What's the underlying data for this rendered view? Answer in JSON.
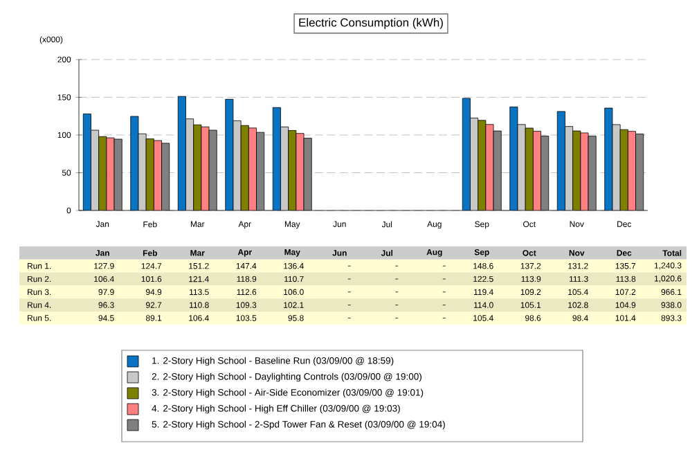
{
  "chart_data": {
    "type": "bar",
    "title": "Electric Consumption (kWh)",
    "ylabel": "(x000)",
    "categories": [
      "Jan",
      "Feb",
      "Mar",
      "Apr",
      "May",
      "Jun",
      "Jul",
      "Aug",
      "Sep",
      "Oct",
      "Nov",
      "Dec"
    ],
    "series": [
      {
        "name": "1.  2-Story High School - Baseline Run  (03/09/00 @ 18:59)",
        "color": "#0a74c4",
        "values": [
          127.9,
          124.7,
          151.2,
          147.4,
          136.4,
          null,
          null,
          null,
          148.6,
          137.2,
          131.2,
          135.7
        ],
        "value_labels": [
          "127.9",
          "124.7",
          "151.2",
          "147.4",
          "136.4",
          null,
          null,
          null,
          "148.6",
          "137.2",
          "131.2",
          "135.7"
        ]
      },
      {
        "name": "2.  2-Story High School - Daylighting Controls  (03/09/00 @ 19:00)",
        "color": "#c8c8c8",
        "values": [
          106.4,
          101.6,
          121.4,
          118.9,
          110.7,
          null,
          null,
          null,
          122.5,
          113.9,
          111.3,
          113.8
        ],
        "value_labels": [
          "106.4",
          "101.6",
          "121.4",
          "118.9",
          "110.7",
          null,
          null,
          null,
          "122.5",
          "113.9",
          "111.3",
          "113.8"
        ]
      },
      {
        "name": "3.  2-Story High School - Air-Side Economizer  (03/09/00 @ 19:01)",
        "color": "#808000",
        "values": [
          97.9,
          94.9,
          113.5,
          112.6,
          106.0,
          null,
          null,
          null,
          119.4,
          109.2,
          105.4,
          107.2
        ],
        "value_labels": [
          "97.9",
          "94.9",
          "113.5",
          "112.6",
          "106.0",
          null,
          null,
          null,
          "119.4",
          "109.2",
          "105.4",
          "107.2"
        ]
      },
      {
        "name": "4.  2-Story High School - High Eff Chiller  (03/09/00 @ 19:03)",
        "color": "#ff8080",
        "values": [
          96.3,
          92.7,
          110.8,
          109.3,
          102.1,
          null,
          null,
          null,
          114.0,
          105.1,
          102.8,
          104.9
        ],
        "value_labels": [
          "96.3",
          "92.7",
          "110.8",
          "109.3",
          "102.1",
          null,
          null,
          null,
          "114.0",
          "105.1",
          "102.8",
          "104.9"
        ]
      },
      {
        "name": "5.  2-Story High School - 2-Spd Tower Fan & Reset  (03/09/00 @ 19:04)",
        "color": "#808080",
        "values": [
          94.5,
          89.1,
          106.4,
          103.5,
          95.8,
          null,
          null,
          null,
          105.4,
          98.6,
          98.4,
          101.4
        ],
        "value_labels": [
          "94.5",
          "89.1",
          "106.4",
          "103.5",
          "95.8",
          null,
          null,
          null,
          "105.4",
          "98.6",
          "98.4",
          "101.4"
        ]
      }
    ],
    "ylim": [
      0,
      200
    ],
    "yticks": [
      0,
      50,
      100,
      150,
      200
    ],
    "grid": "y",
    "legend": "bottom",
    "annotations": [
      "Run 1.",
      "Run 2.",
      "Run 3.",
      "Run 4.",
      "Run 5.",
      "Total",
      "1,240.3",
      "1,020.6",
      "966.1",
      "938.0",
      "893.3"
    ]
  }
}
